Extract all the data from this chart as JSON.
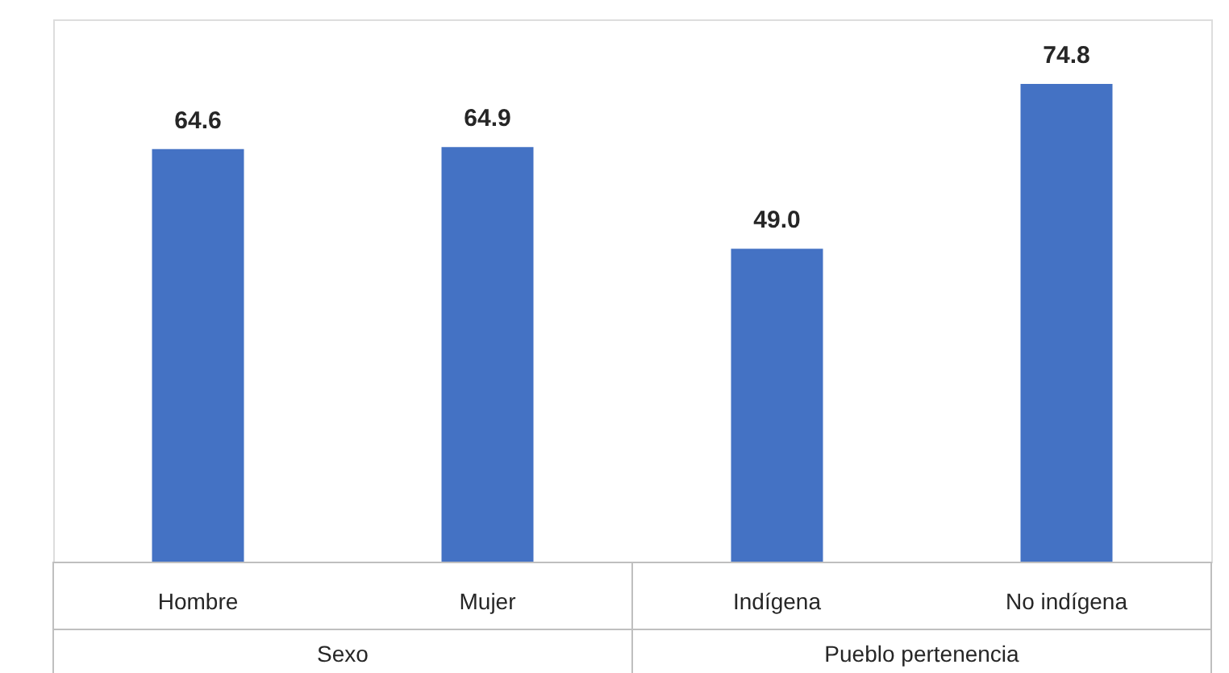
{
  "chart_data": {
    "type": "bar",
    "categories": [
      "Hombre",
      "Mujer",
      "Indígena",
      "No indígena"
    ],
    "values": [
      64.6,
      64.9,
      49.0,
      74.8
    ],
    "color": "#4472c4",
    "value_labels": [
      "64.6",
      "64.9",
      "49.0",
      "74.8"
    ],
    "annotations": [
      "Sexo",
      "Pueblo pertenencia"
    ]
  }
}
